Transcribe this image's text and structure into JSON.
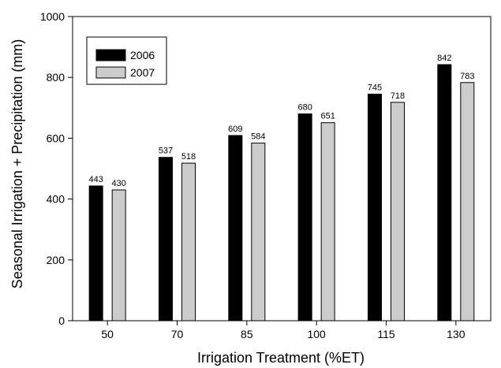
{
  "chart_data": {
    "type": "bar",
    "title": "",
    "xlabel": "Irrigation Treatment (%ET)",
    "ylabel": "Seasonal Irrigation + Precipitation (mm)",
    "categories": [
      "50",
      "70",
      "85",
      "100",
      "115",
      "130"
    ],
    "series": [
      {
        "name": "2006",
        "values": [
          443,
          537,
          609,
          680,
          745,
          842
        ],
        "color": "#000000"
      },
      {
        "name": "2007",
        "values": [
          430,
          518,
          584,
          651,
          718,
          783
        ],
        "color": "#cccccc"
      }
    ],
    "ylim": [
      0,
      1000
    ],
    "yticks": [
      0,
      200,
      400,
      600,
      800,
      1000
    ],
    "grid": false,
    "legend_position": "top-left",
    "data_labels": true
  }
}
